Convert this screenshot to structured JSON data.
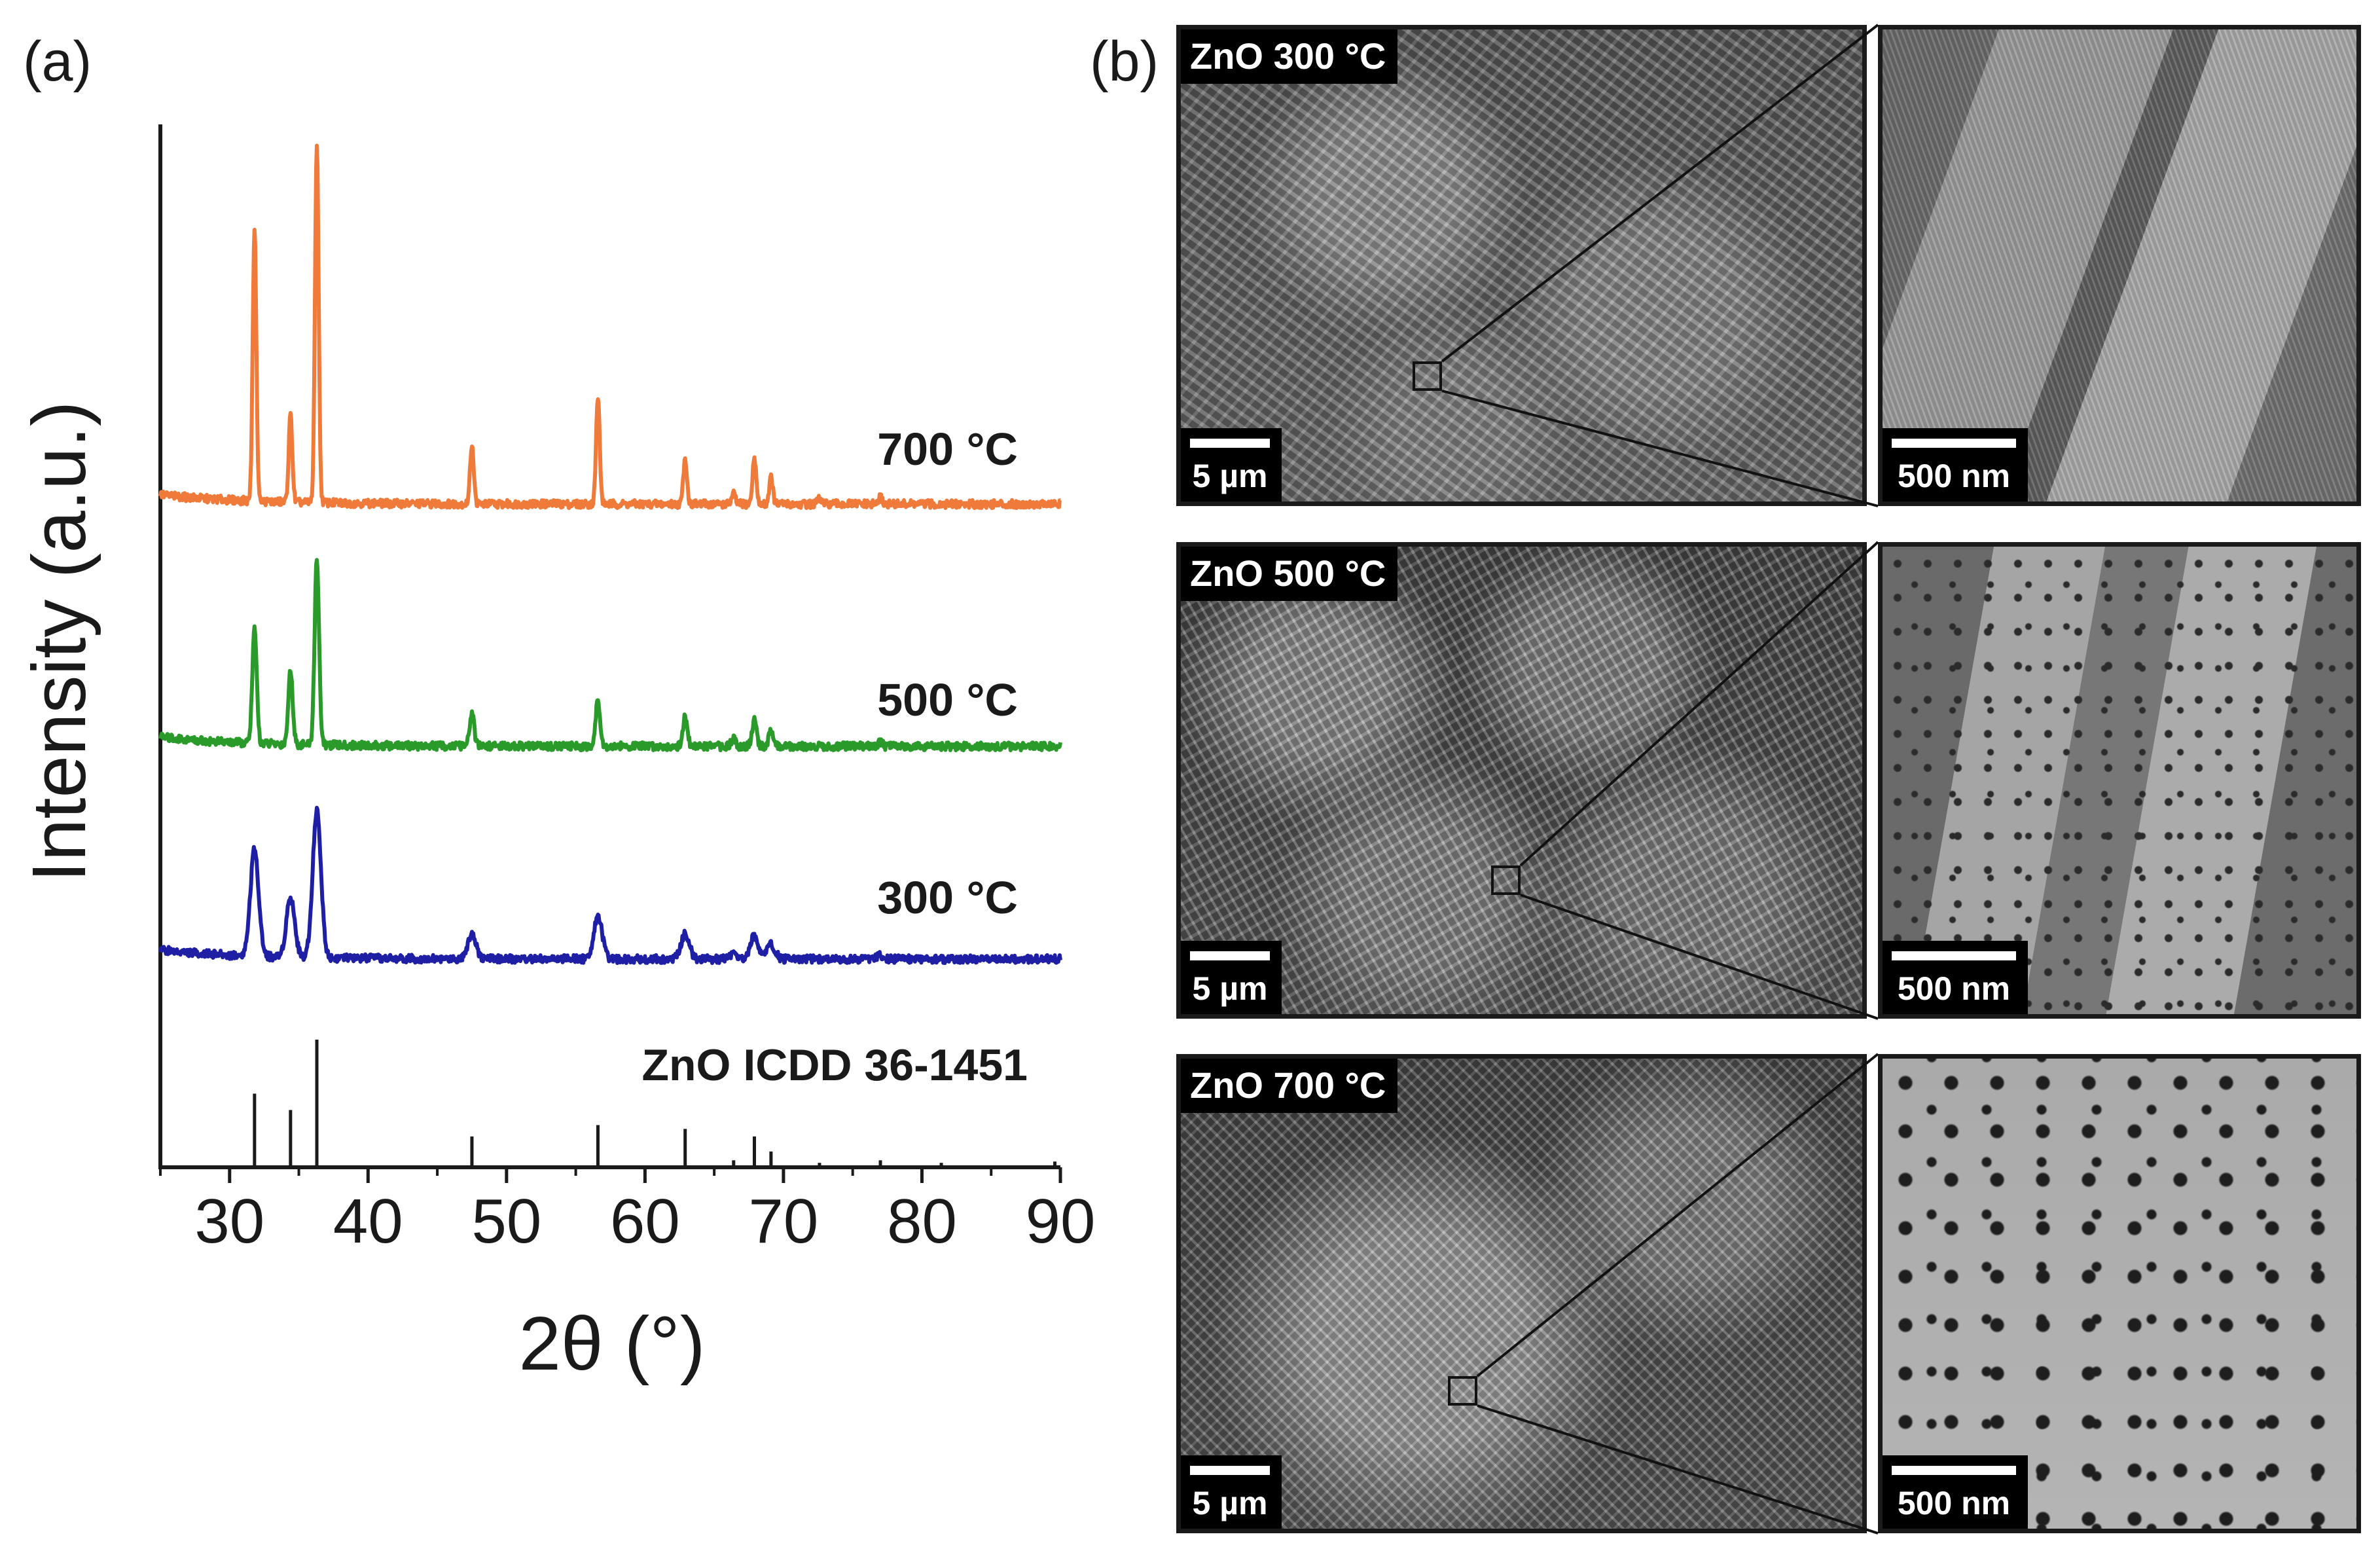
{
  "panels": {
    "a_label": "(a)",
    "b_label": "(b)"
  },
  "chart_data": {
    "type": "line",
    "title": "",
    "xlabel": "2θ (°)",
    "ylabel": "Intensity (a.u.)",
    "xlim": [
      25,
      90
    ],
    "xticks": [
      30,
      40,
      50,
      60,
      70,
      80,
      90
    ],
    "xtick_labels": [
      "30",
      "40",
      "50",
      "60",
      "70",
      "80",
      "90"
    ],
    "yticks": false,
    "series": [
      {
        "name": "700 °C",
        "label": "700 °C",
        "color": "#f07a3a",
        "baseline": 0,
        "peaks": [
          [
            31.8,
            41
          ],
          [
            34.4,
            13
          ],
          [
            36.3,
            54
          ],
          [
            47.5,
            9
          ],
          [
            56.6,
            16
          ],
          [
            62.9,
            7
          ],
          [
            66.4,
            1.5
          ],
          [
            67.9,
            7
          ],
          [
            69.1,
            4
          ],
          [
            72.6,
            0.8
          ],
          [
            77.0,
            1.0
          ]
        ],
        "peak_width": 0.13
      },
      {
        "name": "500 °C",
        "label": "500 °C",
        "color": "#2a9a2a",
        "baseline": 0,
        "peaks": [
          [
            31.8,
            17
          ],
          [
            34.4,
            11
          ],
          [
            36.3,
            28
          ],
          [
            47.5,
            5
          ],
          [
            56.6,
            7
          ],
          [
            62.9,
            4.5
          ],
          [
            66.4,
            1.2
          ],
          [
            67.9,
            4
          ],
          [
            69.1,
            2.2
          ],
          [
            77.0,
            0.6
          ]
        ],
        "peak_width": 0.16
      },
      {
        "name": "300 °C",
        "label": "300 °C",
        "color": "#1f1fa6",
        "baseline": 0,
        "peaks": [
          [
            31.8,
            16
          ],
          [
            34.4,
            9
          ],
          [
            36.3,
            22
          ],
          [
            47.5,
            3.8
          ],
          [
            56.6,
            6.5
          ],
          [
            62.9,
            3.8
          ],
          [
            66.4,
            0.8
          ],
          [
            67.9,
            3.4
          ],
          [
            69.1,
            2.2
          ],
          [
            77.0,
            0.5
          ]
        ],
        "peak_width": 0.3
      }
    ],
    "reference": {
      "name": "ZnO ICDD 36-1451",
      "label": "ZnO ICDD 36-1451",
      "lines": [
        [
          31.8,
          57
        ],
        [
          34.4,
          44
        ],
        [
          36.3,
          100
        ],
        [
          47.5,
          23
        ],
        [
          56.6,
          32
        ],
        [
          62.9,
          29
        ],
        [
          66.4,
          4
        ],
        [
          67.9,
          23
        ],
        [
          69.1,
          11
        ],
        [
          72.6,
          2
        ],
        [
          77.0,
          4
        ],
        [
          81.4,
          2
        ],
        [
          89.6,
          3
        ]
      ]
    }
  },
  "sem_images": [
    {
      "title": "ZnO 300 °C",
      "overview_scale": "5 µm",
      "zoom_scale": "500 nm",
      "texture": "plates"
    },
    {
      "title": "ZnO 500 °C",
      "overview_scale": "5 µm",
      "zoom_scale": "500 nm",
      "texture": "porous-plates"
    },
    {
      "title": "ZnO 700 °C",
      "overview_scale": "5 µm",
      "zoom_scale": "500 nm",
      "texture": "porous-sintered"
    }
  ],
  "colors": {
    "axis": "#1a1a1a",
    "sem_bg": "#6b6b6b"
  }
}
